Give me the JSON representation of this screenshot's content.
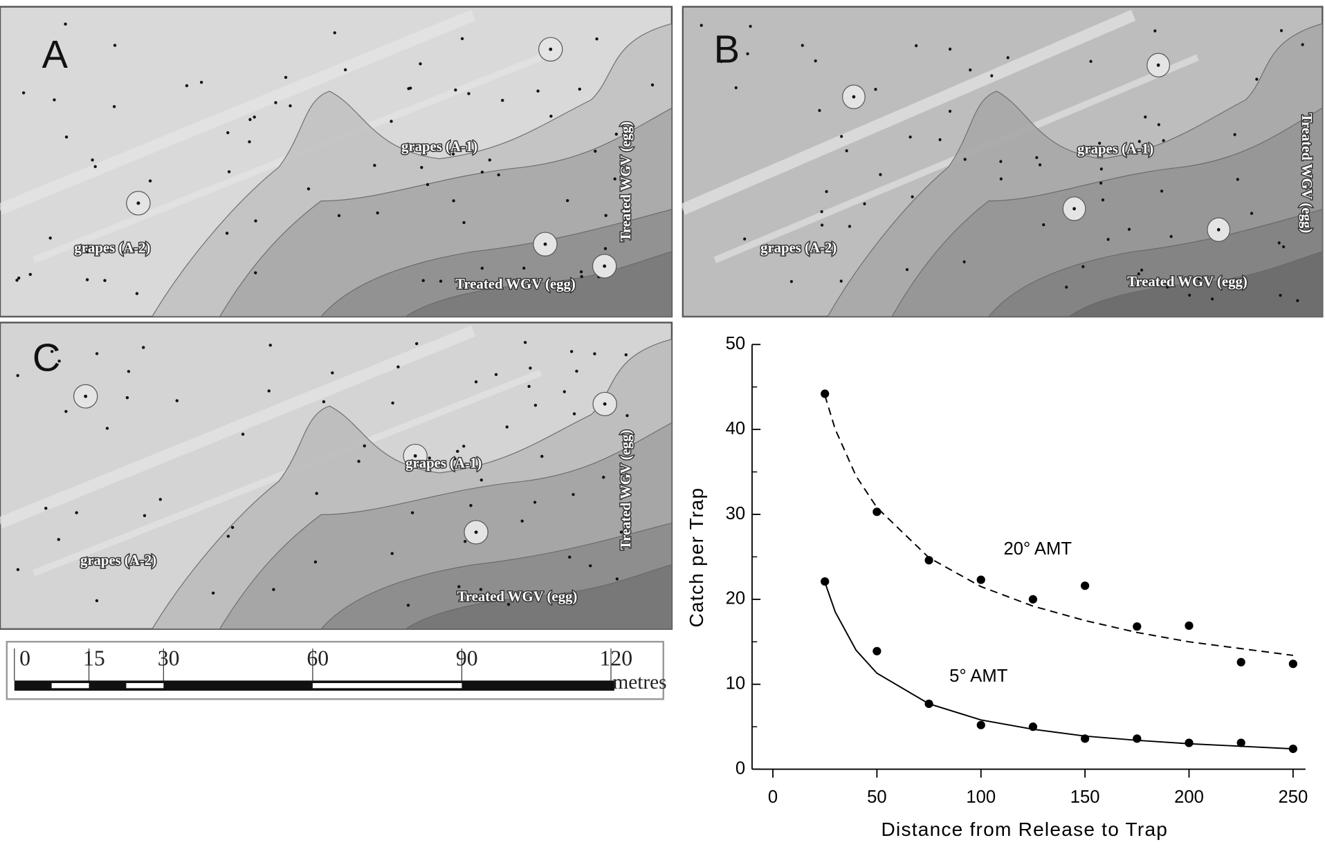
{
  "maps": [
    {
      "label": "A",
      "texts": [
        "grapes (A-1)",
        "grapes (A-2)",
        "Treated WGV (egg)",
        "Treated WGV (egg)"
      ]
    },
    {
      "label": "B",
      "texts": [
        "grapes (A-1)",
        "grapes (A-2)",
        "Treated WGV (egg)",
        "Treated WGV (egg)"
      ]
    },
    {
      "label": "C",
      "texts": [
        "grapes (A-1)",
        "grapes (A-2)",
        "Treated WGV (egg)",
        "Treated WGV (egg)"
      ]
    }
  ],
  "scale_bar": {
    "ticks": [
      0,
      15,
      30,
      60,
      90,
      120
    ],
    "unit": "metres"
  },
  "chart_data": {
    "type": "scatter",
    "x_label": "Distance from Release to Trap",
    "y_label": "Catch per Trap",
    "xlim": [
      -10,
      256
    ],
    "xticks": [
      0,
      50,
      100,
      150,
      200,
      250
    ],
    "ylim": [
      0,
      50
    ],
    "yticks": [
      0,
      10,
      20,
      30,
      40,
      50
    ],
    "yminorticks": [
      5,
      15,
      25,
      35,
      45
    ],
    "series": [
      {
        "name": "20° AMT",
        "color": "#000000",
        "x": [
          25,
          50,
          75,
          100,
          125,
          150,
          175,
          200,
          225,
          250
        ],
        "values": [
          44.2,
          30.3,
          24.6,
          22.3,
          20.0,
          21.6,
          16.8,
          16.9,
          12.6,
          12.4
        ],
        "fit": {
          "linestyle": "dashed",
          "x": [
            25,
            30,
            40,
            50,
            75,
            100,
            125,
            150,
            175,
            200,
            225,
            250
          ],
          "values": [
            44.0,
            40.0,
            34.5,
            30.8,
            24.9,
            21.5,
            19.2,
            17.5,
            16.1,
            15.0,
            14.2,
            13.4
          ]
        }
      },
      {
        "name": "5° AMT",
        "color": "#000000",
        "x": [
          25,
          50,
          75,
          100,
          125,
          150,
          175,
          200,
          225,
          250
        ],
        "values": [
          22.1,
          13.9,
          7.7,
          5.2,
          5.0,
          3.6,
          3.6,
          3.1,
          3.1,
          2.4
        ],
        "fit": {
          "linestyle": "solid",
          "x": [
            25,
            30,
            40,
            50,
            75,
            100,
            125,
            150,
            175,
            200,
            225,
            250
          ],
          "values": [
            22.0,
            18.5,
            14.0,
            11.3,
            7.7,
            5.8,
            4.7,
            3.9,
            3.4,
            3.0,
            2.7,
            2.4
          ]
        }
      }
    ]
  }
}
